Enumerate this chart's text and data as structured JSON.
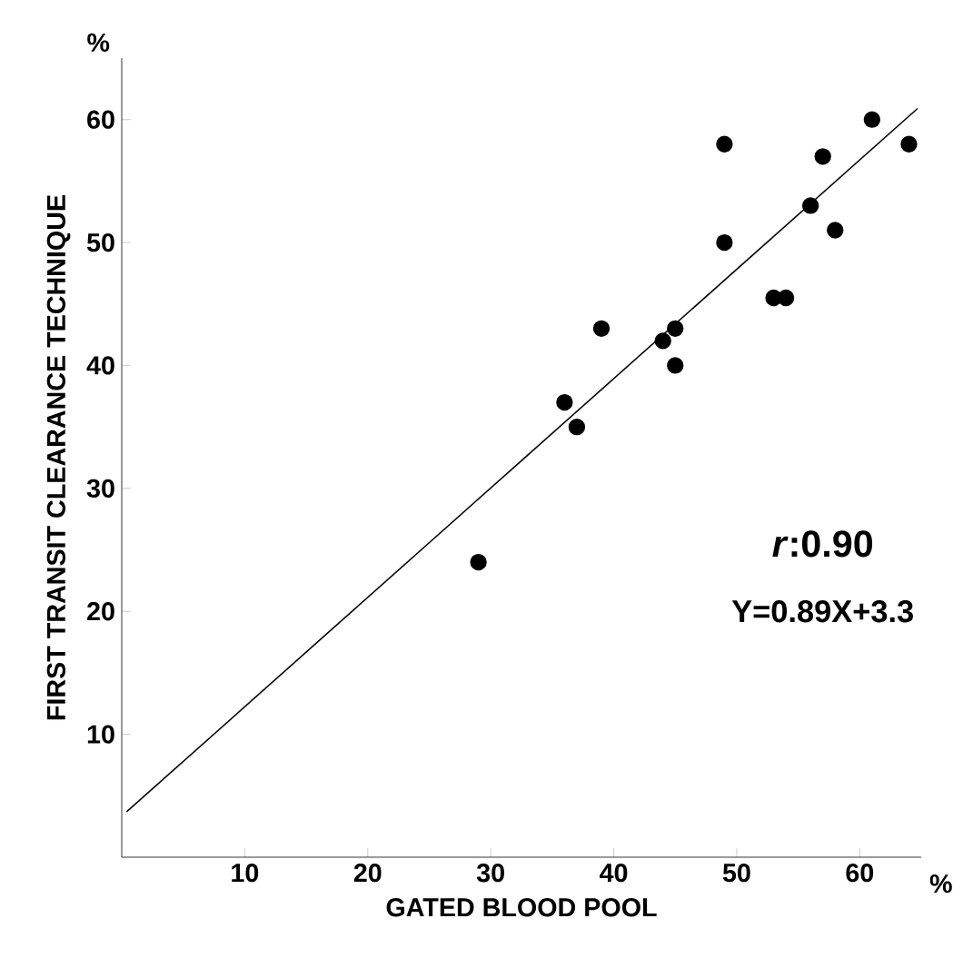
{
  "chart_data": {
    "type": "scatter",
    "xlabel": "GATED BLOOD POOL",
    "ylabel": "FIRST TRANSIT CLEARANCE TECHNIQUE",
    "xlim": [
      0,
      65
    ],
    "ylim": [
      0,
      65
    ],
    "xticks": [
      10,
      20,
      30,
      40,
      50,
      60
    ],
    "yticks": [
      10,
      20,
      30,
      40,
      50,
      60
    ],
    "marker": "circle",
    "grid": false,
    "series": [
      {
        "color": "#000000",
        "x": [
          29,
          36,
          37,
          39,
          44,
          45,
          45,
          49,
          49,
          53,
          54,
          56,
          57,
          58,
          61,
          64
        ],
        "values": [
          24,
          37,
          35,
          43,
          42,
          43,
          40,
          58,
          50,
          45.5,
          45.5,
          53,
          57,
          51,
          60,
          58
        ]
      },
      {
        "type": "line",
        "color": "#000000",
        "marker": "none",
        "line_style": "solid",
        "x": [
          0.4,
          64.7
        ],
        "values": [
          3.7,
          60.9
        ]
      }
    ],
    "annotations": [
      "*r*:0.90",
      "Y=0.89X+3.3",
      "%",
      "%"
    ]
  }
}
